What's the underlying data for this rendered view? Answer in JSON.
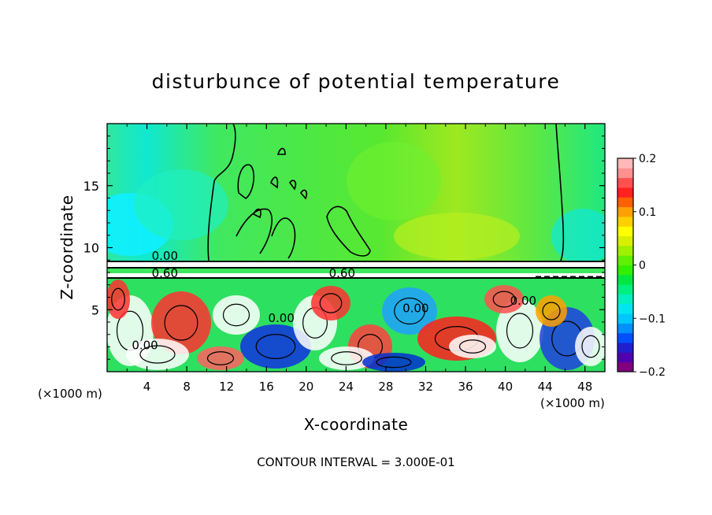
{
  "chart_data": {
    "type": "heatmap",
    "title": "disturbunce of potential temperature",
    "xlabel": "X-coordinate",
    "ylabel": "Z-coordinate",
    "x_unit_label_left": "(×1000 m)",
    "x_unit_label_right": "(×1000 m)",
    "xlim": [
      0,
      50
    ],
    "ylim": [
      0,
      20
    ],
    "x_ticks": [
      4,
      8,
      12,
      16,
      20,
      24,
      28,
      32,
      36,
      40,
      44,
      48
    ],
    "y_ticks": [
      5,
      10,
      15
    ],
    "contour_interval_text": "CONTOUR INTERVAL = 3.000E-01",
    "contour_labels": [
      {
        "text": "0.00",
        "x": 5.8,
        "z": 9.2
      },
      {
        "text": "0.60",
        "x": 5.8,
        "z": 7.8
      },
      {
        "text": "0.60",
        "x": 23.6,
        "z": 7.8
      },
      {
        "text": "0.00",
        "x": 17.5,
        "z": 4.2
      },
      {
        "text": "0.00",
        "x": 31.0,
        "z": 5.0
      },
      {
        "text": "0.00",
        "x": 41.8,
        "z": 5.6
      },
      {
        "text": "0.00",
        "x": 3.8,
        "z": 2.0
      }
    ],
    "colorbar": {
      "min": -0.2,
      "max": 0.2,
      "tick_labels": [
        "0.2",
        "0.1",
        "0",
        "−0.1",
        "−0.2"
      ],
      "tick_values": [
        0.2,
        0.1,
        0,
        -0.1,
        -0.2
      ],
      "colors": [
        "#800080",
        "#5000b0",
        "#2020d0",
        "#0050ff",
        "#0090ff",
        "#00c8ff",
        "#00e6f0",
        "#00f0c0",
        "#00f080",
        "#00e840",
        "#30f000",
        "#60f000",
        "#a0f000",
        "#d8f000",
        "#ffff00",
        "#ffd000",
        "#ffa000",
        "#ff6000",
        "#ff2020",
        "#ff5050",
        "#ff9090",
        "#ffb8b8"
      ]
    },
    "field_description_points": []
  }
}
